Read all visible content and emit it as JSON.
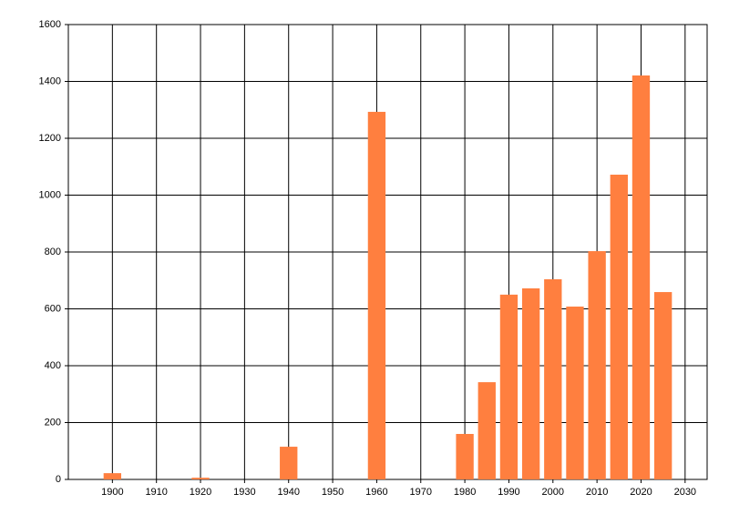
{
  "chart_data": {
    "type": "bar",
    "x": [
      1900,
      1920,
      1940,
      1960,
      1980,
      1985,
      1990,
      1995,
      2000,
      2005,
      2010,
      2015,
      2020,
      2025
    ],
    "values": [
      22,
      6,
      115,
      1293,
      160,
      342,
      650,
      672,
      704,
      608,
      803,
      1072,
      1421,
      659
    ],
    "color": "#ff7f3f",
    "xlim": [
      1890,
      2035
    ],
    "xticks": [
      1900,
      1910,
      1920,
      1930,
      1940,
      1950,
      1960,
      1970,
      1980,
      1990,
      2000,
      2010,
      2020,
      2030
    ],
    "ylim": [
      0,
      1600
    ],
    "yticks": [
      0,
      200,
      400,
      600,
      800,
      1000,
      1200,
      1400,
      1600
    ],
    "grid": true
  }
}
